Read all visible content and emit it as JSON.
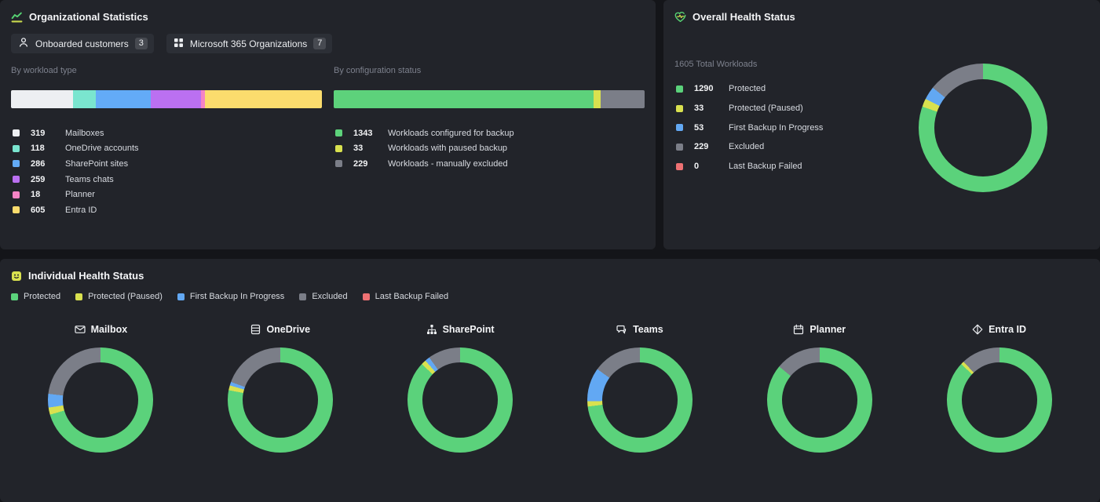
{
  "org_stats": {
    "title": "Organizational Statistics",
    "buttons": [
      {
        "label": "Onboarded customers",
        "count": "3",
        "icon": "person-icon"
      },
      {
        "label": "Microsoft 365 Organizations",
        "count": "7",
        "icon": "app-grid-icon"
      }
    ]
  },
  "overall_health": {
    "title": "Overall Health Status",
    "total_label": "1605 Total Workloads"
  },
  "individual_health": {
    "title": "Individual Health Status",
    "legend": [
      {
        "label": "Protected",
        "color": "#5bd27b"
      },
      {
        "label": "Protected (Paused)",
        "color": "#d9e14f"
      },
      {
        "label": "First Backup In Progress",
        "color": "#62a8f3"
      },
      {
        "label": "Excluded",
        "color": "#7b7e88"
      },
      {
        "label": "Last Backup Failed",
        "color": "#ee7173"
      }
    ]
  },
  "icons": {
    "org_title": "line-chart-icon",
    "customers_button": "person-icon",
    "organizations_button": "app-grid-icon",
    "overall_title": "heart-pulse-icon",
    "individual_title": "badge-face-icon",
    "mailbox": "envelope-icon",
    "onedrive": "disk-stack-icon",
    "sharepoint": "sitemap-icon",
    "teams": "chat-bubbles-icon",
    "planner": "calendar-icon",
    "entra_id": "diamond-icon"
  },
  "chart_data": [
    {
      "id": "by_workload_type",
      "type": "bar",
      "title": "By workload type",
      "categories": [
        "Mailboxes",
        "OneDrive accounts",
        "SharePoint sites",
        "Teams chats",
        "Planner",
        "Entra ID"
      ],
      "values": [
        319,
        118,
        286,
        259,
        18,
        605
      ],
      "colors": [
        "#edeff2",
        "#7ae5cf",
        "#63abf7",
        "#bb70f1",
        "#f584c5",
        "#fbdc6d"
      ]
    },
    {
      "id": "by_configuration_status",
      "type": "bar",
      "title": "By configuration status",
      "categories": [
        "Workloads configured for backup",
        "Workloads with paused backup",
        "Workloads - manually excluded"
      ],
      "values": [
        1343,
        33,
        229
      ],
      "colors": [
        "#5dd27b",
        "#d9e14f",
        "#7b7e88"
      ]
    },
    {
      "id": "overall_health",
      "type": "donut",
      "title": "Overall Health Status",
      "categories": [
        "Protected",
        "Protected (Paused)",
        "First Backup In Progress",
        "Excluded",
        "Last Backup Failed"
      ],
      "values": [
        1290,
        33,
        53,
        229,
        0
      ],
      "colors": [
        "#5bd27b",
        "#d9e14f",
        "#62a8f3",
        "#7b7e88",
        "#ee7173"
      ]
    },
    {
      "id": "mailbox",
      "type": "donut",
      "title": "Mailbox",
      "categories": [
        "Protected",
        "Protected (Paused)",
        "First Backup In Progress",
        "Excluded",
        "Last Backup Failed"
      ],
      "values_pct": [
        70.5,
        2.2,
        4.2,
        23.1,
        0
      ],
      "colors": [
        "#5bd27b",
        "#d9e14f",
        "#62a8f3",
        "#7b7e88",
        "#ee7173"
      ]
    },
    {
      "id": "onedrive",
      "type": "donut",
      "title": "OneDrive",
      "categories": [
        "Protected",
        "Protected (Paused)",
        "First Backup In Progress",
        "Excluded",
        "Last Backup Failed"
      ],
      "values_pct": [
        78,
        1.5,
        1.1,
        19.4,
        0
      ],
      "colors": [
        "#5bd27b",
        "#d9e14f",
        "#62a8f3",
        "#7b7e88",
        "#ee7173"
      ]
    },
    {
      "id": "sharepoint",
      "type": "donut",
      "title": "SharePoint",
      "categories": [
        "Protected",
        "Protected (Paused)",
        "First Backup In Progress",
        "Excluded",
        "Last Backup Failed"
      ],
      "values_pct": [
        87,
        1.5,
        1.5,
        10,
        0
      ],
      "colors": [
        "#5bd27b",
        "#d9e14f",
        "#62a8f3",
        "#7b7e88",
        "#ee7173"
      ]
    },
    {
      "id": "teams",
      "type": "donut",
      "title": "Teams",
      "categories": [
        "Protected",
        "Protected (Paused)",
        "First Backup In Progress",
        "Excluded",
        "Last Backup Failed"
      ],
      "values_pct": [
        73,
        1.6,
        10.4,
        15,
        0
      ],
      "colors": [
        "#5bd27b",
        "#d9e14f",
        "#62a8f3",
        "#7b7e88",
        "#ee7173"
      ]
    },
    {
      "id": "planner",
      "type": "donut",
      "title": "Planner",
      "categories": [
        "Protected",
        "Protected (Paused)",
        "First Backup In Progress",
        "Excluded",
        "Last Backup Failed"
      ],
      "values_pct": [
        86,
        0,
        0,
        14,
        0
      ],
      "colors": [
        "#5bd27b",
        "#d9e14f",
        "#62a8f3",
        "#7b7e88",
        "#ee7173"
      ]
    },
    {
      "id": "entra_id",
      "type": "donut",
      "title": "Entra ID",
      "categories": [
        "Protected",
        "Protected (Paused)",
        "First Backup In Progress",
        "Excluded",
        "Last Backup Failed"
      ],
      "values_pct": [
        87,
        1,
        0,
        12,
        0
      ],
      "colors": [
        "#5bd27b",
        "#d9e14f",
        "#62a8f3",
        "#7b7e88",
        "#ee7173"
      ]
    }
  ]
}
